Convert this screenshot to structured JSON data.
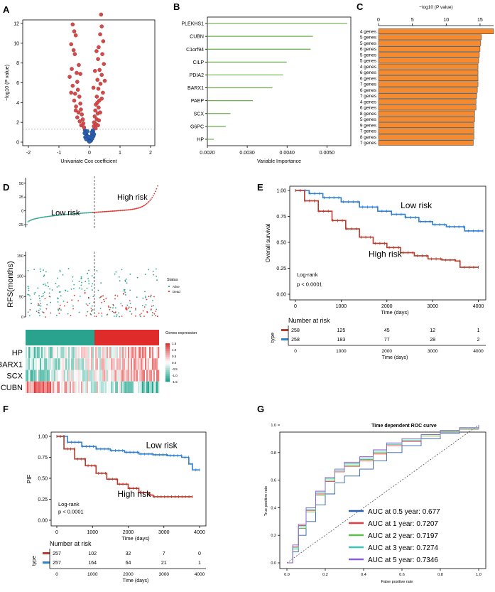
{
  "colors": {
    "red": "#d44a4a",
    "blue": "#2b5fae",
    "green": "#6ab04c",
    "orange": "#f58a2e",
    "teal": "#2aa38e",
    "km_red": "#b83a2a",
    "km_blue": "#2f7fd1"
  },
  "chart_data": [
    {
      "panel": "A",
      "type": "scatter",
      "xlabel": "Univariate Cox coefficient",
      "ylabel": "−log10 (P value)",
      "xlim": [
        -2,
        2
      ],
      "ylim": [
        0,
        12
      ],
      "xticks": [
        "-2",
        "-1",
        "0",
        "1",
        "2"
      ],
      "yticks": [
        "0",
        "2",
        "4",
        "6",
        "8",
        "10",
        "12"
      ],
      "threshold_y": 1.3,
      "points_red": [
        [
          -0.55,
          11.9
        ],
        [
          -0.5,
          11.2
        ],
        [
          -0.45,
          10.8
        ],
        [
          -0.6,
          9.9
        ],
        [
          -0.52,
          9.3
        ],
        [
          -0.48,
          8.9
        ],
        [
          -0.58,
          7.4
        ],
        [
          -0.42,
          7.0
        ],
        [
          -0.65,
          6.6
        ],
        [
          -0.4,
          6.1
        ],
        [
          -0.55,
          5.7
        ],
        [
          -0.38,
          5.3
        ],
        [
          -0.47,
          4.9
        ],
        [
          -0.33,
          4.6
        ],
        [
          -0.5,
          4.2
        ],
        [
          -0.3,
          3.9
        ],
        [
          -0.44,
          3.6
        ],
        [
          -0.28,
          3.3
        ],
        [
          -0.36,
          3.0
        ],
        [
          -0.25,
          2.8
        ],
        [
          -0.4,
          2.5
        ],
        [
          -0.22,
          2.3
        ],
        [
          -0.32,
          2.1
        ],
        [
          -0.2,
          1.9
        ],
        [
          -0.27,
          1.7
        ],
        [
          -0.18,
          1.5
        ],
        [
          -0.3,
          6.9
        ],
        [
          -0.6,
          5.0
        ],
        [
          -0.35,
          7.8
        ],
        [
          -0.45,
          3.2
        ],
        [
          0.38,
          12.9
        ],
        [
          0.4,
          11.7
        ],
        [
          0.35,
          10.9
        ],
        [
          0.45,
          10.2
        ],
        [
          0.3,
          9.6
        ],
        [
          0.42,
          8.9
        ],
        [
          0.28,
          8.4
        ],
        [
          0.47,
          7.9
        ],
        [
          0.33,
          7.3
        ],
        [
          0.4,
          6.8
        ],
        [
          0.26,
          6.3
        ],
        [
          0.36,
          5.9
        ],
        [
          0.29,
          5.4
        ],
        [
          0.44,
          5.0
        ],
        [
          0.24,
          4.6
        ],
        [
          0.32,
          4.2
        ],
        [
          0.21,
          3.8
        ],
        [
          0.3,
          3.5
        ],
        [
          0.19,
          3.2
        ],
        [
          0.27,
          2.9
        ],
        [
          0.17,
          2.6
        ],
        [
          0.24,
          2.3
        ],
        [
          0.15,
          2.0
        ],
        [
          0.22,
          1.8
        ],
        [
          0.14,
          1.6
        ],
        [
          0.2,
          1.4
        ],
        [
          0.26,
          4.0
        ],
        [
          0.35,
          3.0
        ],
        [
          0.18,
          7.2
        ],
        [
          0.5,
          6.2
        ],
        [
          0.23,
          9.2
        ],
        [
          0.31,
          2.2
        ],
        [
          0.4,
          4.4
        ],
        [
          0.13,
          5.5
        ],
        [
          0.28,
          1.7
        ]
      ],
      "points_blue": [
        [
          -0.15,
          1.2
        ],
        [
          -0.12,
          1.0
        ],
        [
          -0.1,
          0.8
        ],
        [
          -0.08,
          0.6
        ],
        [
          -0.06,
          0.4
        ],
        [
          -0.04,
          0.25
        ],
        [
          -0.02,
          0.1
        ],
        [
          -0.14,
          0.5
        ],
        [
          -0.11,
          0.3
        ],
        [
          -0.07,
          1.1
        ],
        [
          -0.16,
          0.9
        ],
        [
          0.02,
          0.1
        ],
        [
          0.04,
          0.3
        ],
        [
          0.06,
          0.5
        ],
        [
          0.08,
          0.7
        ],
        [
          0.1,
          0.9
        ],
        [
          0.12,
          1.1
        ],
        [
          0.05,
          0.15
        ],
        [
          0.09,
          0.35
        ],
        [
          0.13,
          0.6
        ],
        [
          0.15,
          0.8
        ],
        [
          0.11,
          1.2
        ],
        [
          0.03,
          0.45
        ],
        [
          -0.03,
          0.55
        ],
        [
          0.07,
          1.0
        ],
        [
          0.0,
          0.05
        ]
      ]
    },
    {
      "panel": "B",
      "type": "bar",
      "xlabel": "Variable Importance",
      "categories": [
        "PLEKHS1",
        "CUBN",
        "C1orf94",
        "CILP",
        "PDIA2",
        "BARX1",
        "PAEP",
        "SCX",
        "G6PC",
        "HP"
      ],
      "values": [
        0.00551,
        0.00465,
        0.00459,
        0.00399,
        0.00389,
        0.00363,
        0.00314,
        0.00258,
        0.00246,
        0.00216
      ],
      "xlim": [
        0.002,
        0.0056
      ],
      "xticks": [
        "0.0020",
        "0.0030",
        "0.0040",
        "0.0050"
      ]
    },
    {
      "panel": "C",
      "type": "bar",
      "xlabel": "−log10 (P value)",
      "xlim": [
        0,
        17
      ],
      "xticks": [
        "0",
        "5",
        "10",
        "15"
      ],
      "categories": [
        "4 genes",
        "5 genes",
        "5 genes",
        "6 genes",
        "5 genes",
        "5 genes",
        "4 genes",
        "6 genes",
        "6 genes",
        "7 genes",
        "6 genes",
        "7 genes",
        "4 genes",
        "6 genes",
        "8 genes",
        "5 genes",
        "9 genes",
        "7 genes",
        "8 genes",
        "7 genes"
      ],
      "values": [
        17.0,
        15.2,
        15.1,
        15.0,
        14.9,
        14.8,
        14.7,
        14.7,
        14.7,
        14.7,
        14.6,
        14.5,
        14.4,
        14.4,
        14.2,
        14.2,
        14.1,
        14.1,
        14.1,
        14.0
      ]
    },
    {
      "panel": "D",
      "type": "scatter",
      "label_low": "Low risk",
      "label_high": "High risk",
      "yticks_score": [
        "50",
        "25",
        "0",
        "-25"
      ],
      "ylabel_rfs": "RFS(months)",
      "yticks_rfs": [
        "150",
        "100",
        "50",
        "0"
      ],
      "legend_status_title": "Status",
      "legend_status": [
        "Alive",
        "Dead"
      ],
      "heatmap_rows": [
        "HP",
        "BARX1",
        "SCX",
        "CUBN"
      ],
      "legend_expr_title": "Genes expression",
      "legend_expr_ticks": [
        "1.5",
        "1.0",
        "0.5",
        "0.0",
        "-0.5",
        "-1.0",
        "-1.5"
      ]
    },
    {
      "panel": "E",
      "type": "line",
      "ylabel": "Overall survival",
      "xlabel": "Time (days)",
      "xticks": [
        "0",
        "1000",
        "2000",
        "3000",
        "4000"
      ],
      "yticks": [
        "0.00",
        "0.25",
        "0.50",
        "0.75",
        "1.00"
      ],
      "xlim": [
        0,
        4100
      ],
      "series": [
        {
          "name": "Low risk",
          "x": [
            0,
            300,
            600,
            1000,
            1400,
            1800,
            2100,
            2400,
            2700,
            3000,
            3300,
            3600,
            3700,
            4100
          ],
          "y": [
            1.0,
            0.97,
            0.93,
            0.89,
            0.84,
            0.8,
            0.77,
            0.74,
            0.7,
            0.67,
            0.65,
            0.65,
            0.61,
            0.61
          ]
        },
        {
          "name": "High risk",
          "x": [
            0,
            200,
            500,
            800,
            1100,
            1400,
            1700,
            2000,
            2300,
            2600,
            2900,
            3200,
            3500,
            3600,
            4000
          ],
          "y": [
            1.0,
            0.9,
            0.8,
            0.71,
            0.63,
            0.55,
            0.49,
            0.45,
            0.4,
            0.37,
            0.34,
            0.33,
            0.32,
            0.26,
            0.26
          ]
        }
      ],
      "logrank": "Log-rank",
      "pvalue": "p < 0.0001",
      "risk_title": "Number at risk",
      "risk_ylabel": "type",
      "risk_rows": [
        [
          "258",
          "125",
          "45",
          "12",
          "1"
        ],
        [
          "258",
          "183",
          "77",
          "28",
          "2"
        ]
      ]
    },
    {
      "panel": "F",
      "type": "line",
      "ylabel": "PIF",
      "xlabel": "Time (days)",
      "xticks": [
        "0",
        "1000",
        "2000",
        "3000",
        "4000"
      ],
      "yticks": [
        "0.00",
        "0.25",
        "0.50",
        "0.75",
        "1.00"
      ],
      "xlim": [
        0,
        4100
      ],
      "series": [
        {
          "name": "Low risk",
          "x": [
            0,
            300,
            700,
            1100,
            1500,
            1900,
            2300,
            2700,
            3100,
            3500,
            3700,
            3800,
            4000
          ],
          "y": [
            1.0,
            0.93,
            0.88,
            0.85,
            0.83,
            0.81,
            0.79,
            0.78,
            0.77,
            0.75,
            0.67,
            0.6,
            0.6
          ]
        },
        {
          "name": "High risk",
          "x": [
            0,
            200,
            500,
            800,
            1100,
            1400,
            1700,
            2000,
            2300,
            2600,
            2700,
            3800
          ],
          "y": [
            1.0,
            0.85,
            0.73,
            0.65,
            0.56,
            0.49,
            0.43,
            0.38,
            0.33,
            0.3,
            0.28,
            0.28
          ]
        }
      ],
      "logrank": "Log-rank",
      "pvalue": "p < 0.0001",
      "risk_title": "Number at risk",
      "risk_ylabel": "type",
      "risk_rows": [
        [
          "257",
          "102",
          "32",
          "7",
          "0"
        ],
        [
          "257",
          "164",
          "64",
          "21",
          "1"
        ]
      ]
    },
    {
      "panel": "G",
      "type": "line",
      "title": "Time dependent ROC curve",
      "xlabel": "False positive rate",
      "ylabel": "True positive rate",
      "xlim": [
        0,
        1
      ],
      "ylim": [
        0,
        1
      ],
      "xticks": [
        "0.0",
        "0.2",
        "0.4",
        "0.6",
        "0.8",
        "1.0"
      ],
      "yticks": [
        "0.0",
        "0.2",
        "0.4",
        "0.6",
        "0.8",
        "1.0"
      ],
      "series": [
        {
          "name": "AUC at 0.5 year: 0.677",
          "color": "#2b5fae",
          "x": [
            0,
            0.03,
            0.06,
            0.1,
            0.15,
            0.2,
            0.25,
            0.3,
            0.38,
            0.45,
            0.52,
            0.6,
            0.7,
            0.8,
            0.9,
            1.0
          ],
          "y": [
            0,
            0.08,
            0.2,
            0.3,
            0.42,
            0.5,
            0.58,
            0.63,
            0.68,
            0.74,
            0.8,
            0.85,
            0.9,
            0.94,
            0.97,
            1.0
          ]
        },
        {
          "name": "AUC at 1 year: 0.7207",
          "color": "#e04040",
          "x": [
            0,
            0.03,
            0.06,
            0.1,
            0.15,
            0.2,
            0.25,
            0.3,
            0.38,
            0.45,
            0.52,
            0.6,
            0.7,
            0.8,
            0.9,
            1.0
          ],
          "y": [
            0,
            0.12,
            0.27,
            0.38,
            0.5,
            0.59,
            0.66,
            0.7,
            0.74,
            0.79,
            0.85,
            0.88,
            0.92,
            0.95,
            0.97,
            1.0
          ]
        },
        {
          "name": "AUC at 2 year: 0.7197",
          "color": "#5cbf4a",
          "x": [
            0,
            0.03,
            0.06,
            0.1,
            0.15,
            0.2,
            0.25,
            0.3,
            0.38,
            0.45,
            0.52,
            0.6,
            0.7,
            0.8,
            0.9,
            1.0
          ],
          "y": [
            0,
            0.1,
            0.25,
            0.37,
            0.49,
            0.6,
            0.67,
            0.71,
            0.75,
            0.8,
            0.86,
            0.89,
            0.92,
            0.95,
            0.97,
            1.0
          ]
        },
        {
          "name": "AUC at 3 year: 0.7274",
          "color": "#3ac4b6",
          "x": [
            0,
            0.03,
            0.06,
            0.1,
            0.15,
            0.2,
            0.25,
            0.3,
            0.38,
            0.45,
            0.52,
            0.6,
            0.7,
            0.8,
            0.9,
            1.0
          ],
          "y": [
            0,
            0.11,
            0.26,
            0.39,
            0.51,
            0.61,
            0.67,
            0.72,
            0.76,
            0.81,
            0.86,
            0.89,
            0.93,
            0.96,
            0.98,
            1.0
          ]
        },
        {
          "name": "AUC at 5 year: 0.7346",
          "color": "#8a5ed0",
          "x": [
            0,
            0.03,
            0.06,
            0.1,
            0.15,
            0.2,
            0.25,
            0.3,
            0.38,
            0.45,
            0.52,
            0.6,
            0.7,
            0.8,
            0.9,
            1.0
          ],
          "y": [
            0,
            0.13,
            0.28,
            0.4,
            0.52,
            0.62,
            0.68,
            0.73,
            0.77,
            0.82,
            0.87,
            0.9,
            0.93,
            0.96,
            0.98,
            1.0
          ]
        }
      ]
    }
  ],
  "panel_labels": [
    "A",
    "B",
    "C",
    "D",
    "E",
    "F",
    "G"
  ]
}
